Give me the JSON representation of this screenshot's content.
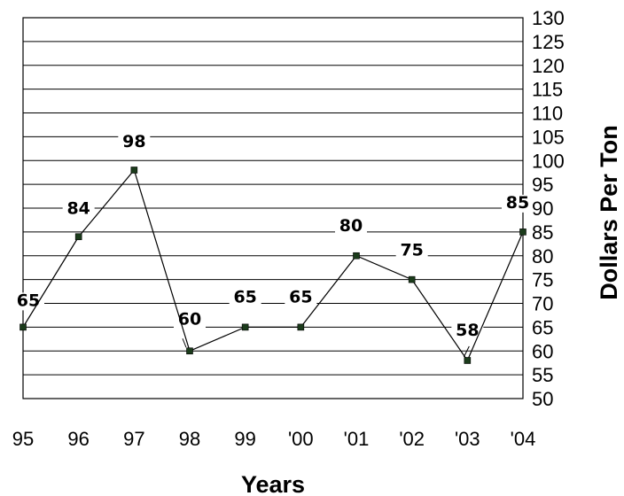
{
  "chart_data": {
    "type": "line",
    "title": "",
    "xlabel": "Years",
    "ylabel": "Dollars Per Ton",
    "categories": [
      "95",
      "96",
      "97",
      "98",
      "99",
      "'00",
      "'01",
      "'02",
      "'03",
      "'04"
    ],
    "series": [
      {
        "values": [
          65,
          84,
          98,
          60,
          65,
          65,
          80,
          75,
          58,
          85
        ]
      }
    ],
    "data_labels": [
      "65",
      "84",
      "98",
      "60",
      "65",
      "65",
      "80",
      "75",
      "58",
      "85"
    ],
    "ylim": [
      50,
      130
    ],
    "ytick_step": 5,
    "yticks": [
      "50",
      "55",
      "60",
      "65",
      "70",
      "75",
      "80",
      "85",
      "90",
      "95",
      "100",
      "105",
      "110",
      "115",
      "120",
      "125",
      "130"
    ],
    "y_axis_position": "right",
    "grid": true,
    "colors": {
      "line": "#000000",
      "marker": "#1b3b1b",
      "background": "#ffffff"
    }
  }
}
